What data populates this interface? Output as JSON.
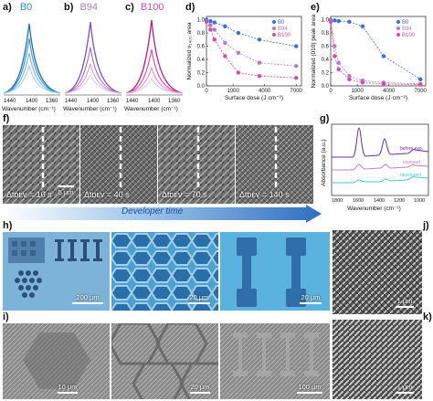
{
  "panels": {
    "a": {
      "letter": "a)",
      "title": "B0",
      "color": "#2e8fd0"
    },
    "b": {
      "letter": "b)",
      "title": "B94",
      "color": "#b07cc6"
    },
    "c": {
      "letter": "c)",
      "title": "B100",
      "color": "#d94aa8"
    },
    "d": {
      "letter": "d)"
    },
    "e": {
      "letter": "e)"
    },
    "f": {
      "letter": "f)"
    },
    "g": {
      "letter": "g)"
    },
    "h": {
      "letter": "h)"
    },
    "i": {
      "letter": "i)"
    },
    "j": {
      "letter": "j)"
    },
    "k": {
      "letter": "k)"
    }
  },
  "spectra_axes": {
    "xticks": [
      "1440",
      "1400",
      "1360"
    ],
    "xlabel": "Wavenumber (cm⁻¹)"
  },
  "chart_data": [
    {
      "type": "line",
      "panel": "d",
      "xlabel": "Surface dose (J·cm⁻²)",
      "ylabel": "Normalized ν₁₄₀₀ area",
      "xlim": [
        0,
        7500
      ],
      "ylim": [
        0.0,
        1.05
      ],
      "xticks": [
        "0",
        "1000",
        "4000",
        "7000"
      ],
      "yticks": [
        "1.0",
        "0.8",
        "0.6",
        "0.4",
        "0.2",
        "0.0"
      ],
      "legend": "top-right",
      "series": [
        {
          "name": "B0",
          "color": "#3a6fd8",
          "x": [
            0,
            150,
            300,
            700,
            1500,
            3500,
            7000
          ],
          "y": [
            1.0,
            0.98,
            0.96,
            0.9,
            0.8,
            0.7,
            0.6
          ]
        },
        {
          "name": "B94",
          "color": "#b07cc6",
          "x": [
            0,
            150,
            300,
            700,
            1500,
            3500,
            7000
          ],
          "y": [
            0.98,
            0.92,
            0.85,
            0.65,
            0.5,
            0.35,
            0.3
          ]
        },
        {
          "name": "B100",
          "color": "#d94aa8",
          "x": [
            0,
            150,
            300,
            700,
            1500,
            3500,
            7000
          ],
          "y": [
            0.97,
            0.85,
            0.7,
            0.45,
            0.2,
            0.15,
            0.12
          ]
        }
      ]
    },
    {
      "type": "line",
      "panel": "e",
      "xlabel": "Surface dose (J·cm⁻²)",
      "ylabel": "Normalized (010) peak area",
      "xlim": [
        0,
        7500
      ],
      "ylim": [
        0.0,
        1.05
      ],
      "xticks": [
        "0",
        "1000",
        "4000",
        "7000"
      ],
      "yticks": [
        "1.0",
        "0.8",
        "0.6",
        "0.4",
        "0.2",
        "0.0"
      ],
      "legend": "top-right",
      "series": [
        {
          "name": "B0",
          "color": "#3a6fd8",
          "x": [
            0,
            150,
            300,
            700,
            1500,
            3500,
            7000
          ],
          "y": [
            1.0,
            0.99,
            0.98,
            0.97,
            0.9,
            0.45,
            0.1
          ]
        },
        {
          "name": "B94",
          "color": "#b07cc6",
          "x": [
            0,
            150,
            300,
            700,
            1500,
            3500,
            7000
          ],
          "y": [
            0.99,
            0.6,
            0.35,
            0.15,
            0.08,
            0.05,
            0.03
          ]
        },
        {
          "name": "B100",
          "color": "#d94aa8",
          "x": [
            0,
            150,
            300,
            700,
            1500,
            3500,
            7000
          ],
          "y": [
            0.97,
            0.45,
            0.25,
            0.1,
            0.05,
            0.03,
            0.02
          ]
        }
      ]
    },
    {
      "type": "line",
      "panel": "g",
      "xlabel": "Wavenumber (cm⁻¹)",
      "ylabel": "Absorbance (a.u.)",
      "xticks": [
        "1800",
        "1600",
        "1400",
        "1200",
        "1000"
      ],
      "series": [
        {
          "name": "before exp.",
          "color": "#6a2fa0"
        },
        {
          "name": "exposed",
          "color": "#c77cc4"
        },
        {
          "name": "developed",
          "color": "#4cc6c8"
        }
      ]
    }
  ],
  "f_times": [
    "Δtᴅᴇᴠ = 10 s",
    "Δtᴅᴇᴠ = 40 s",
    "Δtᴅᴇᴠ = 70 s",
    "Δtᴅᴇᴠ = 140 s"
  ],
  "f_scale": "5 μm",
  "developer_time": "Developer time",
  "h_scales": [
    "200 μm",
    "20 μm",
    "20 μm"
  ],
  "i_scales": [
    "10 μm",
    "20 μm",
    "100 μm"
  ],
  "j_scale": "1 μm",
  "k_scale": "1 μm",
  "colors": {
    "b0": "#2e8fd0",
    "b94": "#b07cc6",
    "b100": "#d94aa8",
    "arrow": "#2f6fc0",
    "micro": "#5aa6d6"
  }
}
